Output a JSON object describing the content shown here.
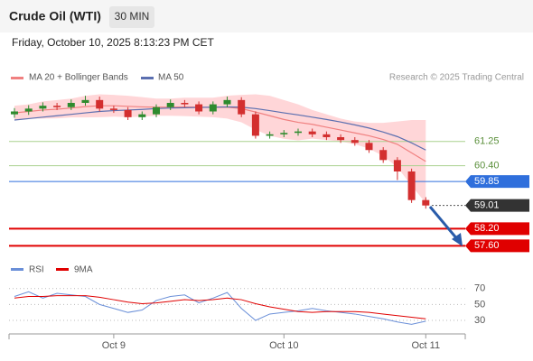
{
  "chart_data": [
    {
      "type": "candlestick",
      "title": "Crude Oil (WTI)",
      "timeframe": "30 MIN",
      "timestamp": "Friday, October 10, 2025 8:13:23 PM CET",
      "credit": "Research © 2025 Trading Central",
      "up_color": "#2e8b2e",
      "down_color": "#d32f2f",
      "ylim": [
        57.2,
        63.2
      ],
      "open": [
        62.2,
        62.3,
        62.4,
        62.5,
        62.45,
        62.6,
        62.7,
        62.4,
        62.35,
        62.1,
        62.2,
        62.45,
        62.6,
        62.55,
        62.3,
        62.55,
        62.7,
        62.2,
        61.45,
        61.5,
        61.55,
        61.6,
        61.5,
        61.4,
        61.3,
        61.2,
        60.95,
        60.6,
        60.2,
        59.2
      ],
      "high": [
        62.42,
        62.52,
        62.62,
        62.6,
        62.72,
        62.85,
        62.82,
        62.5,
        62.45,
        62.3,
        62.55,
        62.72,
        62.7,
        62.65,
        62.65,
        62.82,
        62.8,
        62.3,
        61.6,
        61.65,
        61.7,
        61.7,
        61.6,
        61.5,
        61.4,
        61.3,
        61.05,
        60.7,
        60.3,
        59.3
      ],
      "low": [
        62.08,
        62.18,
        62.3,
        62.35,
        62.35,
        62.5,
        62.3,
        62.25,
        62.0,
        62.0,
        62.1,
        62.35,
        62.45,
        62.2,
        62.2,
        62.45,
        62.1,
        61.35,
        61.35,
        61.4,
        61.45,
        61.4,
        61.3,
        61.2,
        61.1,
        60.85,
        60.5,
        59.9,
        59.1,
        58.9
      ],
      "close": [
        62.3,
        62.4,
        62.5,
        62.45,
        62.6,
        62.7,
        62.4,
        62.35,
        62.1,
        62.2,
        62.45,
        62.6,
        62.55,
        62.3,
        62.55,
        62.7,
        62.2,
        61.45,
        61.5,
        61.55,
        61.6,
        61.5,
        61.4,
        61.3,
        61.2,
        60.95,
        60.6,
        60.2,
        59.2,
        59.01
      ],
      "series": [
        {
          "name": "MA 20 + Bollinger Bands",
          "color": "#f08080",
          "band_color": "#ffc4c8",
          "values": [
            62.25,
            62.3,
            62.35,
            62.38,
            62.42,
            62.47,
            62.5,
            62.5,
            62.48,
            62.46,
            62.45,
            62.45,
            62.46,
            62.45,
            62.44,
            62.45,
            62.4,
            62.28,
            62.15,
            62.02,
            61.92,
            61.85,
            61.75,
            61.65,
            61.55,
            61.45,
            61.32,
            61.15,
            60.85,
            60.55
          ],
          "band_upper": [
            62.5,
            62.55,
            62.65,
            62.7,
            62.75,
            62.85,
            62.9,
            62.88,
            62.85,
            62.8,
            62.75,
            62.75,
            62.78,
            62.78,
            62.78,
            62.85,
            62.88,
            62.9,
            62.85,
            62.7,
            62.55,
            62.35,
            62.2,
            62.05,
            61.95,
            61.9,
            61.9,
            61.95,
            62.0,
            62.0
          ],
          "band_lower": [
            62.0,
            62.05,
            62.05,
            62.06,
            62.09,
            62.09,
            62.1,
            62.12,
            62.1,
            62.12,
            62.15,
            62.15,
            62.14,
            62.12,
            62.1,
            62.05,
            61.92,
            61.66,
            61.45,
            61.34,
            61.29,
            61.35,
            61.3,
            61.25,
            61.15,
            61.0,
            60.74,
            60.35,
            59.7,
            59.1
          ]
        },
        {
          "name": "MA 50",
          "color": "#5b6fb0",
          "values": [
            62.0,
            62.05,
            62.1,
            62.15,
            62.2,
            62.25,
            62.3,
            62.33,
            62.35,
            62.37,
            62.4,
            62.42,
            62.43,
            62.44,
            62.45,
            62.46,
            62.45,
            62.4,
            62.33,
            62.25,
            62.18,
            62.1,
            62.02,
            61.93,
            61.83,
            61.72,
            61.58,
            61.42,
            61.2,
            60.95
          ]
        }
      ],
      "levels": [
        {
          "value": 61.25,
          "color": "#a9d18e",
          "text_color": "#5a8f3a",
          "filled": false
        },
        {
          "value": 60.4,
          "label": "60.40",
          "color": "#a9d18e",
          "text_color": "#5a8f3a",
          "filled": false
        },
        {
          "value": 59.85,
          "color": "#2f6fdc",
          "text_color": "#ffffff",
          "filled": true
        },
        {
          "value": 59.01,
          "color": "#333333",
          "text_color": "#ffffff",
          "filled": true,
          "dotted": true
        },
        {
          "value": 58.2,
          "label": "58.20",
          "color": "#e00000",
          "text_color": "#ffffff",
          "filled": true
        },
        {
          "value": 57.6,
          "label": "57.60",
          "color": "#e00000",
          "text_color": "#ffffff",
          "filled": true
        }
      ]
    },
    {
      "type": "line",
      "categories": [
        null,
        null,
        null,
        null,
        null,
        null,
        null,
        "Oct 9",
        null,
        null,
        null,
        null,
        null,
        null,
        null,
        null,
        null,
        null,
        null,
        "Oct 10",
        null,
        null,
        null,
        null,
        null,
        null,
        null,
        null,
        null,
        "Oct 11"
      ],
      "ylim": [
        13,
        81
      ],
      "yticks": [
        30,
        50,
        70
      ],
      "series": [
        {
          "name": "RSI",
          "color": "#6a8fd8",
          "values": [
            60,
            66,
            58,
            64,
            62,
            60,
            50,
            45,
            40,
            43,
            55,
            60,
            62,
            52,
            58,
            65,
            45,
            30,
            38,
            40,
            42,
            45,
            42,
            40,
            38,
            35,
            32,
            28,
            25,
            29
          ]
        },
        {
          "name": "9MA",
          "color": "#e00000",
          "values": [
            58,
            60,
            60,
            61,
            61,
            61,
            59,
            56,
            53,
            51,
            52,
            54,
            56,
            55,
            56,
            58,
            56,
            51,
            47,
            44,
            41,
            40,
            41,
            41,
            41,
            40,
            38,
            36,
            34,
            32
          ]
        }
      ]
    }
  ]
}
